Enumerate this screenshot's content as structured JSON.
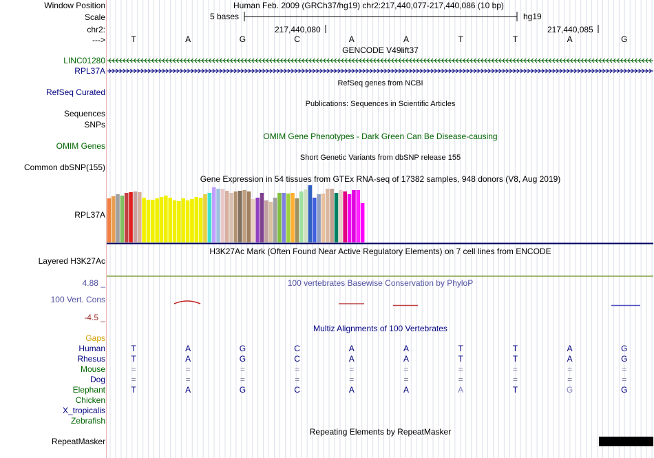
{
  "header": {
    "window_position_label": "Window Position",
    "window_position_value": "Human Feb. 2009 (GRCh37/hg19)   chr2:217,440,077-217,440,086 (10 bp)",
    "scale_label": "Scale",
    "scale_left": "5 bases",
    "scale_right": "hg19",
    "chr_label": "chr2:",
    "coord_1": "217,440,080",
    "coord_2": "217,440,085",
    "strand_label": "--->"
  },
  "bases": [
    "T",
    "A",
    "G",
    "C",
    "A",
    "A",
    "T",
    "T",
    "A",
    "G"
  ],
  "tracks": {
    "gencode_title": "GENCODE V49lift37",
    "gene1": "LINC01280",
    "gene2": "RPL37A",
    "refseq_label": "RefSeq Curated",
    "refseq_title": "RefSeq genes from NCBI",
    "pubs_title": "Publications: Sequences in Scientific Articles",
    "sequences_label": "Sequences",
    "snps_label": "SNPs",
    "omim_title": "OMIM Gene Phenotypes - Dark Green Can Be Disease-causing",
    "omim_label": "OMIM Genes",
    "dbsnp_title": "Short Genetic Variants from dbSNP release 155",
    "dbsnp_label": "Common dbSNP(155)",
    "gtex_title": "Gene Expression in 54 tissues from GTEx RNA-seq of 17382 samples, 948 donors (V8, Aug 2019)",
    "gtex_label": "RPL37A",
    "h3k_title": "H3K27Ac Mark (Often Found Near Active Regulatory Elements) on 7 cell lines from ENCODE",
    "h3k_label": "Layered H3K27Ac",
    "cons_max": "4.88 _",
    "cons_title": "100 vertebrates Basewise Conservation by PhyloP",
    "cons_label": "100 Vert. Cons",
    "cons_min": "-4.5 _",
    "multiz_title": "Multiz Alignments of 100 Vertebrates",
    "repeat_title": "Repeating Elements by RepeatMasker",
    "repeat_label": "RepeatMasker"
  },
  "colors": {
    "green_label": "#006400",
    "navy_label": "#000080",
    "gaps": "#d2a000",
    "cons_blue": "#5050a0",
    "cons_red": "#a03030"
  },
  "gtex_heights": [
    64,
    67,
    70,
    68,
    72,
    73,
    74,
    73,
    65,
    62,
    62,
    64,
    66,
    68,
    65,
    61,
    60,
    64,
    61,
    63,
    66,
    65,
    70,
    72,
    80,
    78,
    78,
    75,
    72,
    74,
    75,
    76,
    74,
    63,
    65,
    72,
    61,
    59,
    65,
    72,
    72,
    71,
    72,
    64,
    74,
    77,
    83,
    65,
    70,
    71,
    78,
    78,
    72,
    76,
    74,
    70,
    76,
    76,
    57
  ],
  "alignment": {
    "species": [
      "Gaps",
      "Human",
      "Rhesus",
      "Mouse",
      "Dog",
      "Elephant",
      "Chicken",
      "X_tropicalis",
      "Zebrafish"
    ],
    "Human": [
      "T",
      "A",
      "G",
      "C",
      "A",
      "A",
      "T",
      "T",
      "A",
      "G"
    ],
    "Rhesus": [
      "T",
      "A",
      "G",
      "C",
      "A",
      "A",
      "T",
      "T",
      "A",
      "G"
    ],
    "Mouse": [
      "=",
      "=",
      "=",
      "=",
      "=",
      "=",
      "=",
      "=",
      "=",
      "="
    ],
    "Dog": [
      "=",
      "=",
      "=",
      "=",
      "=",
      "=",
      "=",
      "=",
      "=",
      "="
    ],
    "Elephant": [
      "T",
      "A",
      "G",
      "C",
      "A",
      "A",
      "A",
      "T",
      "G",
      "G"
    ]
  }
}
